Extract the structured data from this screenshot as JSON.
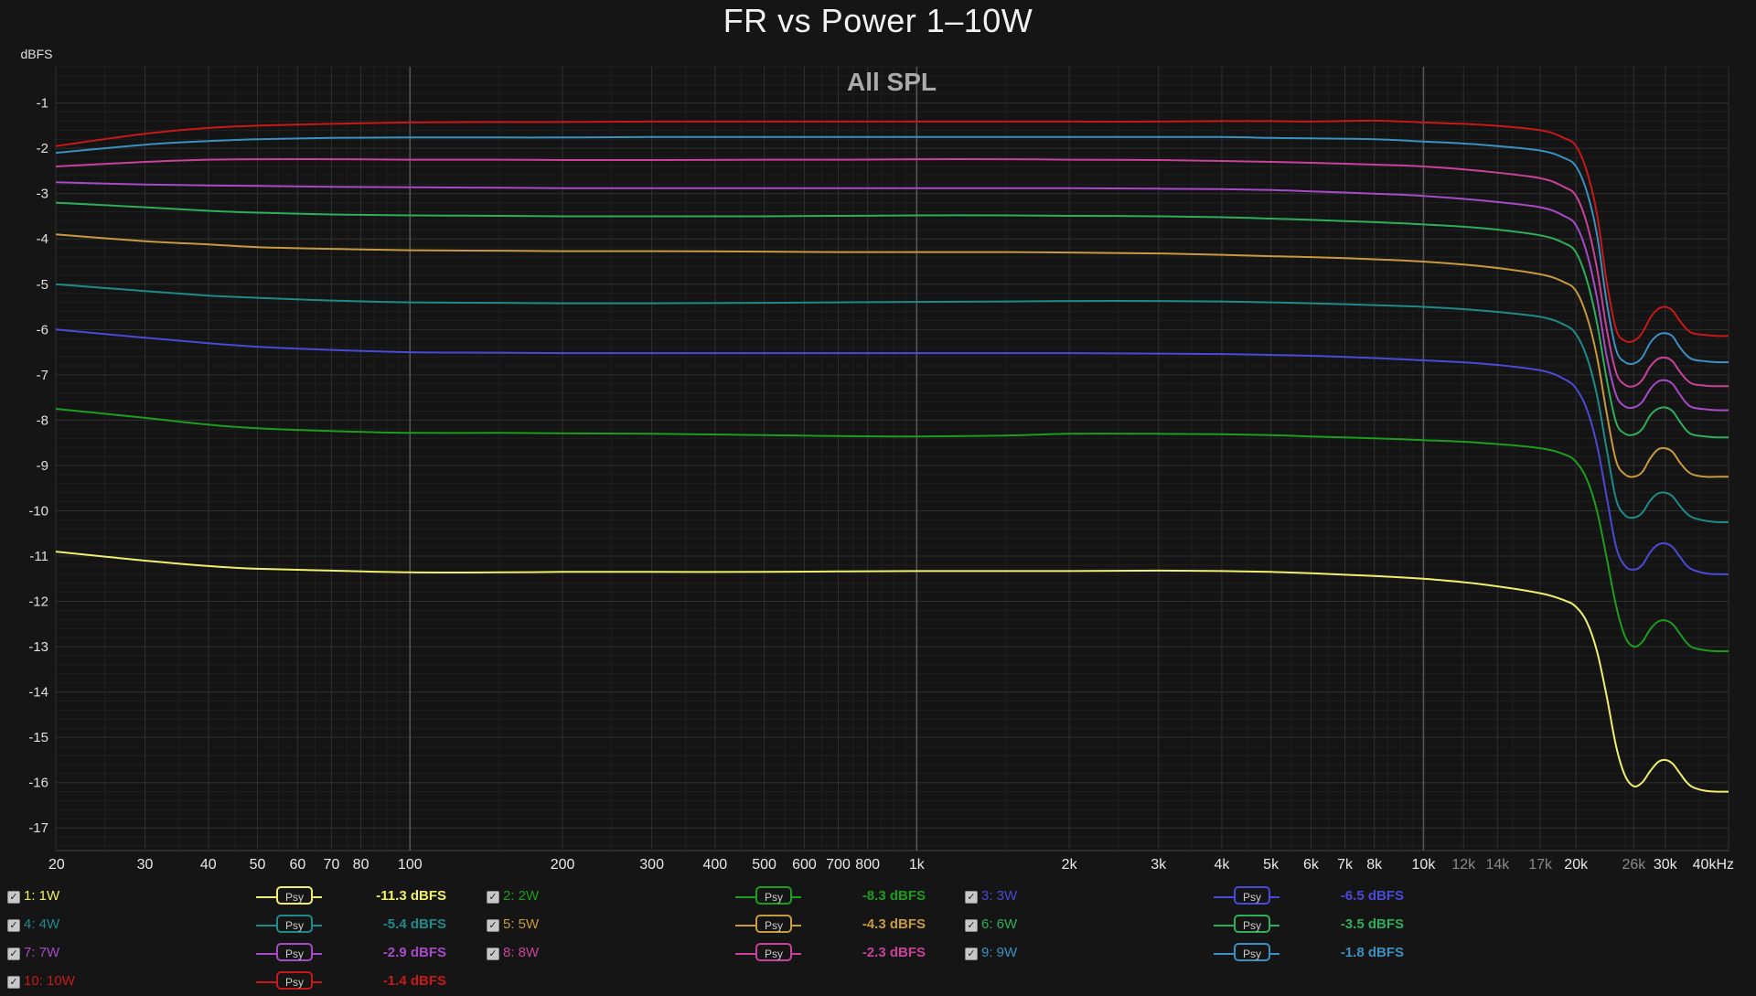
{
  "chart_data": {
    "type": "line",
    "title": "FR vs Power 1–10W",
    "inner_label": "All SPL",
    "ylabel": "dBFS",
    "ylim": [
      -17.5,
      -0.2
    ],
    "xlim": [
      20,
      40000
    ],
    "xscale": "log",
    "grid": true,
    "y_ticks": [
      "-1",
      "-2",
      "-3",
      "-4",
      "-5",
      "-6",
      "-7",
      "-8",
      "-9",
      "-10",
      "-11",
      "-12",
      "-13",
      "-14",
      "-15",
      "-16",
      "-17"
    ],
    "x_ticks": [
      {
        "v": 20,
        "t": "20"
      },
      {
        "v": 30,
        "t": "30"
      },
      {
        "v": 40,
        "t": "40"
      },
      {
        "v": 50,
        "t": "50"
      },
      {
        "v": 60,
        "t": "60"
      },
      {
        "v": 70,
        "t": "70"
      },
      {
        "v": 80,
        "t": "80"
      },
      {
        "v": 100,
        "t": "100"
      },
      {
        "v": 200,
        "t": "200"
      },
      {
        "v": 300,
        "t": "300"
      },
      {
        "v": 400,
        "t": "400"
      },
      {
        "v": 500,
        "t": "500"
      },
      {
        "v": 600,
        "t": "600"
      },
      {
        "v": 700,
        "t": "700"
      },
      {
        "v": 800,
        "t": "800"
      },
      {
        "v": 1000,
        "t": "1k"
      },
      {
        "v": 2000,
        "t": "2k"
      },
      {
        "v": 3000,
        "t": "3k"
      },
      {
        "v": 4000,
        "t": "4k"
      },
      {
        "v": 5000,
        "t": "5k"
      },
      {
        "v": 6000,
        "t": "6k"
      },
      {
        "v": 7000,
        "t": "7k"
      },
      {
        "v": 8000,
        "t": "8k"
      },
      {
        "v": 10000,
        "t": "10k"
      },
      {
        "v": 12000,
        "t": "12k",
        "dim": true
      },
      {
        "v": 14000,
        "t": "14k",
        "dim": true
      },
      {
        "v": 17000,
        "t": "17k",
        "dim": true
      },
      {
        "v": 20000,
        "t": "20k"
      },
      {
        "v": 26000,
        "t": "26k",
        "dim": true
      },
      {
        "v": 30000,
        "t": "30k"
      },
      {
        "v": 40000,
        "t": "40kHz"
      }
    ],
    "x": [
      20,
      30,
      40,
      50,
      70,
      100,
      150,
      200,
      300,
      500,
      700,
      1000,
      1500,
      2000,
      3000,
      4000,
      5000,
      6000,
      8000,
      10000,
      13000,
      17000,
      19000,
      20000,
      21000,
      22000,
      23000,
      24000,
      25000,
      26000,
      27000,
      28000,
      29000,
      30000,
      31000,
      32000,
      33000,
      34000,
      36000,
      38000,
      40000
    ],
    "series": [
      {
        "name": "1: 1W",
        "color": "#f0ef6c",
        "values": [
          -10.9,
          -11.1,
          -11.22,
          -11.28,
          -11.32,
          -11.36,
          -11.36,
          -11.35,
          -11.35,
          -11.35,
          -11.34,
          -11.33,
          -11.33,
          -11.33,
          -11.32,
          -11.33,
          -11.35,
          -11.38,
          -11.44,
          -11.5,
          -11.62,
          -11.82,
          -11.98,
          -12.12,
          -12.45,
          -13.1,
          -14.1,
          -15.2,
          -15.85,
          -16.08,
          -16.0,
          -15.75,
          -15.55,
          -15.5,
          -15.58,
          -15.78,
          -15.98,
          -16.1,
          -16.18,
          -16.2,
          -16.2
        ]
      },
      {
        "name": "2: 2W",
        "color": "#1d9d1d",
        "values": [
          -7.75,
          -7.95,
          -8.1,
          -8.18,
          -8.24,
          -8.28,
          -8.28,
          -8.29,
          -8.3,
          -8.33,
          -8.35,
          -8.36,
          -8.34,
          -8.3,
          -8.3,
          -8.31,
          -8.33,
          -8.36,
          -8.4,
          -8.44,
          -8.5,
          -8.62,
          -8.76,
          -8.92,
          -9.3,
          -10.0,
          -11.05,
          -12.1,
          -12.78,
          -13.0,
          -12.9,
          -12.62,
          -12.45,
          -12.42,
          -12.5,
          -12.7,
          -12.9,
          -13.02,
          -13.08,
          -13.1,
          -13.1
        ]
      },
      {
        "name": "3: 3W",
        "color": "#4a4ad8",
        "values": [
          -6.0,
          -6.18,
          -6.3,
          -6.38,
          -6.45,
          -6.5,
          -6.51,
          -6.52,
          -6.52,
          -6.52,
          -6.52,
          -6.52,
          -6.52,
          -6.52,
          -6.53,
          -6.54,
          -6.56,
          -6.58,
          -6.63,
          -6.68,
          -6.75,
          -6.9,
          -7.1,
          -7.3,
          -7.75,
          -8.55,
          -9.7,
          -10.8,
          -11.22,
          -11.3,
          -11.2,
          -10.92,
          -10.75,
          -10.72,
          -10.8,
          -11.0,
          -11.2,
          -11.3,
          -11.38,
          -11.4,
          -11.4
        ]
      },
      {
        "name": "4: 4W",
        "color": "#1f8a8a",
        "values": [
          -5.0,
          -5.15,
          -5.25,
          -5.3,
          -5.36,
          -5.4,
          -5.41,
          -5.42,
          -5.42,
          -5.41,
          -5.4,
          -5.39,
          -5.38,
          -5.37,
          -5.37,
          -5.38,
          -5.4,
          -5.42,
          -5.46,
          -5.5,
          -5.58,
          -5.72,
          -5.9,
          -6.1,
          -6.6,
          -7.45,
          -8.65,
          -9.75,
          -10.1,
          -10.15,
          -10.05,
          -9.78,
          -9.62,
          -9.6,
          -9.68,
          -9.88,
          -10.05,
          -10.15,
          -10.22,
          -10.25,
          -10.25
        ]
      },
      {
        "name": "5: 5W",
        "color": "#c89a3e",
        "values": [
          -3.9,
          -4.05,
          -4.12,
          -4.18,
          -4.22,
          -4.25,
          -4.26,
          -4.27,
          -4.27,
          -4.28,
          -4.29,
          -4.29,
          -4.29,
          -4.3,
          -4.32,
          -4.35,
          -4.38,
          -4.4,
          -4.45,
          -4.5,
          -4.6,
          -4.78,
          -4.96,
          -5.15,
          -5.7,
          -6.6,
          -7.85,
          -8.9,
          -9.2,
          -9.25,
          -9.15,
          -8.85,
          -8.65,
          -8.62,
          -8.7,
          -8.92,
          -9.1,
          -9.2,
          -9.25,
          -9.25,
          -9.25
        ]
      },
      {
        "name": "6: 6W",
        "color": "#2eae5a",
        "values": [
          -3.2,
          -3.3,
          -3.38,
          -3.42,
          -3.46,
          -3.48,
          -3.49,
          -3.5,
          -3.5,
          -3.5,
          -3.49,
          -3.48,
          -3.48,
          -3.49,
          -3.5,
          -3.52,
          -3.55,
          -3.58,
          -3.63,
          -3.68,
          -3.76,
          -3.92,
          -4.1,
          -4.3,
          -4.9,
          -5.85,
          -7.1,
          -8.05,
          -8.3,
          -8.32,
          -8.2,
          -7.9,
          -7.75,
          -7.72,
          -7.8,
          -8.02,
          -8.22,
          -8.32,
          -8.36,
          -8.38,
          -8.38
        ]
      },
      {
        "name": "7: 7W",
        "color": "#a64ac8",
        "values": [
          -2.75,
          -2.8,
          -2.82,
          -2.83,
          -2.85,
          -2.86,
          -2.87,
          -2.88,
          -2.88,
          -2.88,
          -2.88,
          -2.88,
          -2.88,
          -2.88,
          -2.89,
          -2.9,
          -2.92,
          -2.95,
          -3.0,
          -3.05,
          -3.15,
          -3.3,
          -3.5,
          -3.7,
          -4.3,
          -5.3,
          -6.6,
          -7.45,
          -7.7,
          -7.72,
          -7.6,
          -7.32,
          -7.15,
          -7.12,
          -7.2,
          -7.42,
          -7.62,
          -7.72,
          -7.76,
          -7.78,
          -7.78
        ]
      },
      {
        "name": "8: 8W",
        "color": "#c8429a",
        "values": [
          -2.4,
          -2.3,
          -2.25,
          -2.24,
          -2.24,
          -2.25,
          -2.25,
          -2.26,
          -2.26,
          -2.25,
          -2.25,
          -2.24,
          -2.24,
          -2.25,
          -2.26,
          -2.28,
          -2.3,
          -2.32,
          -2.36,
          -2.4,
          -2.5,
          -2.66,
          -2.86,
          -3.05,
          -3.65,
          -4.65,
          -6.0,
          -6.95,
          -7.22,
          -7.25,
          -7.12,
          -6.82,
          -6.65,
          -6.62,
          -6.7,
          -6.92,
          -7.1,
          -7.2,
          -7.24,
          -7.25,
          -7.25
        ]
      },
      {
        "name": "9: 9W",
        "color": "#3a90c0",
        "values": [
          -2.1,
          -1.92,
          -1.84,
          -1.8,
          -1.77,
          -1.76,
          -1.76,
          -1.76,
          -1.75,
          -1.75,
          -1.75,
          -1.75,
          -1.75,
          -1.75,
          -1.75,
          -1.75,
          -1.77,
          -1.78,
          -1.8,
          -1.85,
          -1.92,
          -2.05,
          -2.22,
          -2.4,
          -2.95,
          -3.9,
          -5.4,
          -6.45,
          -6.72,
          -6.75,
          -6.62,
          -6.3,
          -6.12,
          -6.08,
          -6.15,
          -6.38,
          -6.56,
          -6.66,
          -6.7,
          -6.72,
          -6.72
        ]
      },
      {
        "name": "10: 10W",
        "color": "#c81818",
        "values": [
          -1.95,
          -1.68,
          -1.55,
          -1.5,
          -1.46,
          -1.43,
          -1.42,
          -1.42,
          -1.41,
          -1.41,
          -1.41,
          -1.41,
          -1.41,
          -1.41,
          -1.41,
          -1.4,
          -1.4,
          -1.41,
          -1.39,
          -1.43,
          -1.48,
          -1.6,
          -1.78,
          -1.95,
          -2.5,
          -3.45,
          -4.95,
          -6.0,
          -6.25,
          -6.25,
          -6.08,
          -5.75,
          -5.55,
          -5.5,
          -5.58,
          -5.8,
          -5.98,
          -6.08,
          -6.12,
          -6.14,
          -6.14
        ]
      }
    ]
  },
  "legend": [
    {
      "name": "1: 1W",
      "color": "#f0ef6c",
      "button": "Psy",
      "value": "-11.3 dBFS"
    },
    {
      "name": "2: 2W",
      "color": "#1d9d1d",
      "button": "Psy",
      "value": "-8.3 dBFS"
    },
    {
      "name": "3: 3W",
      "color": "#4a4ad8",
      "button": "Psy",
      "value": "-6.5 dBFS"
    },
    {
      "name": "4: 4W",
      "color": "#1f8a8a",
      "button": "Psy",
      "value": "-5.4 dBFS"
    },
    {
      "name": "5: 5W",
      "color": "#c89a3e",
      "button": "Psy",
      "value": "-4.3 dBFS"
    },
    {
      "name": "6: 6W",
      "color": "#2eae5a",
      "button": "Psy",
      "value": "-3.5 dBFS"
    },
    {
      "name": "7: 7W",
      "color": "#a64ac8",
      "button": "Psy",
      "value": "-2.9 dBFS"
    },
    {
      "name": "8: 8W",
      "color": "#c8429a",
      "button": "Psy",
      "value": "-2.3 dBFS"
    },
    {
      "name": "9: 9W",
      "color": "#3a90c0",
      "button": "Psy",
      "value": "-1.8 dBFS"
    },
    {
      "name": "10: 10W",
      "color": "#c81818",
      "button": "Psy",
      "value": "-1.4 dBFS"
    }
  ]
}
